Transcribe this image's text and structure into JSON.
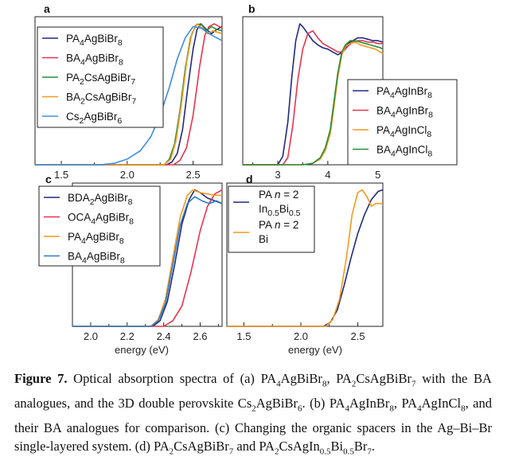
{
  "figure_label": "Figure 7.",
  "caption_parts": [
    " Optical absorption spectra of (a) PA",
    {
      "sub": "4"
    },
    "AgBiBr",
    {
      "sub": "8"
    },
    ", PA",
    {
      "sub": "2"
    },
    "CsAgBiBr",
    {
      "sub": "7"
    },
    " with the BA analogues, and the 3D double perovskite Cs",
    {
      "sub": "2"
    },
    "AgBiBr",
    {
      "sub": "6"
    },
    ". (b) PA",
    {
      "sub": "4"
    },
    "AgInBr",
    {
      "sub": "8"
    },
    ", PA",
    {
      "sub": "4"
    },
    "AgInCl",
    {
      "sub": "8"
    },
    ", and their BA analogues for comparison. (c) Changing the organic spacers in the Ag–Bi–Br single-layered system. (d) PA",
    {
      "sub": "2"
    },
    "CsAgBiBr",
    {
      "sub": "7"
    },
    " and PA",
    {
      "sub": "2"
    },
    "CsAgIn",
    {
      "sub": "0.5"
    },
    "Bi",
    {
      "sub": "0.5"
    },
    "Br",
    {
      "sub": "7"
    },
    "."
  ],
  "chart_data": [
    {
      "panel": "a",
      "type": "line",
      "xlabel": "",
      "ylabel": "",
      "xlim": [
        1.3,
        2.72
      ],
      "ylim": [
        0,
        1.05
      ],
      "xticks": [
        1.5,
        2.0,
        2.5
      ],
      "xtick_labels": [
        "1.5",
        "2.0",
        "2.5"
      ],
      "legend_position": "top-left",
      "series": [
        {
          "name": [
            [
              "PA",
              ""
            ],
            [
              "4",
              "sub"
            ],
            [
              "AgBiBr",
              ""
            ],
            [
              "8",
              "sub"
            ]
          ],
          "color": "#1f2a80",
          "x": [
            1.3,
            2.3,
            2.34,
            2.38,
            2.42,
            2.46,
            2.5,
            2.53,
            2.56,
            2.6,
            2.64,
            2.68,
            2.72
          ],
          "y": [
            0.0,
            0.0,
            0.02,
            0.08,
            0.25,
            0.55,
            0.82,
            0.96,
            1.0,
            0.96,
            0.93,
            0.96,
            0.98
          ]
        },
        {
          "name": [
            [
              "BA",
              ""
            ],
            [
              "4",
              "sub"
            ],
            [
              "AgBiBr",
              ""
            ],
            [
              "8",
              "sub"
            ]
          ],
          "color": "#e8334f",
          "x": [
            1.3,
            2.35,
            2.4,
            2.45,
            2.5,
            2.55,
            2.59,
            2.62,
            2.66,
            2.72
          ],
          "y": [
            0.0,
            0.0,
            0.03,
            0.12,
            0.35,
            0.7,
            0.92,
            0.98,
            1.0,
            0.97
          ]
        },
        {
          "name": [
            [
              "PA",
              ""
            ],
            [
              "2",
              "sub"
            ],
            [
              "CsAgBiBr",
              ""
            ],
            [
              "7",
              "sub"
            ]
          ],
          "color": "#2a8a3a",
          "x": [
            1.3,
            2.28,
            2.32,
            2.36,
            2.4,
            2.44,
            2.48,
            2.52,
            2.56,
            2.6,
            2.64,
            2.68,
            2.72
          ],
          "y": [
            0.0,
            0.0,
            0.04,
            0.15,
            0.38,
            0.68,
            0.9,
            0.99,
            1.0,
            0.95,
            0.98,
            0.96,
            0.95
          ]
        },
        {
          "name": [
            [
              "BA",
              ""
            ],
            [
              "2",
              "sub"
            ],
            [
              "CsAgBiBr",
              ""
            ],
            [
              "7",
              "sub"
            ]
          ],
          "color": "#f49a1c",
          "x": [
            1.3,
            2.28,
            2.33,
            2.37,
            2.41,
            2.45,
            2.49,
            2.53,
            2.57,
            2.61,
            2.65,
            2.72
          ],
          "y": [
            0.0,
            0.0,
            0.04,
            0.17,
            0.42,
            0.72,
            0.93,
            1.0,
            0.97,
            0.93,
            0.95,
            0.93
          ]
        },
        {
          "name": [
            [
              "Cs",
              ""
            ],
            [
              "2",
              "sub"
            ],
            [
              "AgBiBr",
              ""
            ],
            [
              "6",
              "sub"
            ]
          ],
          "color": "#3e8de0",
          "x": [
            1.3,
            1.8,
            1.9,
            2.0,
            2.1,
            2.18,
            2.25,
            2.32,
            2.38,
            2.44,
            2.5,
            2.56,
            2.62,
            2.68,
            2.72
          ],
          "y": [
            0.0,
            0.0,
            0.01,
            0.04,
            0.1,
            0.2,
            0.35,
            0.55,
            0.75,
            0.9,
            0.98,
            0.97,
            0.93,
            0.9,
            0.88
          ]
        }
      ]
    },
    {
      "panel": "b",
      "type": "line",
      "xlabel": "",
      "ylabel": "",
      "xlim": [
        2.3,
        5.1
      ],
      "ylim": [
        0,
        1.05
      ],
      "xticks": [
        3,
        4,
        5
      ],
      "xtick_labels": [
        "3",
        "4",
        "5"
      ],
      "legend_position": "bottom-right",
      "series": [
        {
          "name": [
            [
              "PA",
              ""
            ],
            [
              "4",
              "sub"
            ],
            [
              "AgInBr",
              ""
            ],
            [
              "8",
              "sub"
            ]
          ],
          "color": "#1f2a80",
          "x": [
            2.3,
            3.0,
            3.1,
            3.2,
            3.28,
            3.36,
            3.44,
            3.5,
            3.6,
            3.7,
            3.8,
            3.9,
            4.0,
            4.1,
            4.2,
            4.3,
            4.4,
            4.5,
            4.6,
            4.7,
            4.8,
            4.9,
            5.0,
            5.1
          ],
          "y": [
            0.0,
            0.0,
            0.06,
            0.3,
            0.62,
            0.88,
            1.0,
            0.98,
            0.93,
            0.88,
            0.85,
            0.83,
            0.82,
            0.8,
            0.78,
            0.8,
            0.86,
            0.88,
            0.9,
            0.9,
            0.89,
            0.88,
            0.88,
            0.87
          ]
        },
        {
          "name": [
            [
              "BA",
              ""
            ],
            [
              "4",
              "sub"
            ],
            [
              "AgInBr",
              ""
            ],
            [
              "8",
              "sub"
            ]
          ],
          "color": "#e8334f",
          "x": [
            2.3,
            3.1,
            3.2,
            3.3,
            3.4,
            3.5,
            3.6,
            3.7,
            3.8,
            3.9,
            4.0,
            4.1,
            4.2,
            4.3,
            4.4,
            4.5,
            4.6,
            4.7,
            4.8,
            4.9,
            5.0,
            5.1
          ],
          "y": [
            0.0,
            0.0,
            0.05,
            0.28,
            0.6,
            0.82,
            0.93,
            0.95,
            0.9,
            0.86,
            0.84,
            0.82,
            0.8,
            0.8,
            0.84,
            0.87,
            0.88,
            0.88,
            0.87,
            0.87,
            0.86,
            0.86
          ]
        },
        {
          "name": [
            [
              "PA",
              ""
            ],
            [
              "4",
              "sub"
            ],
            [
              "AgInCl",
              ""
            ],
            [
              "8",
              "sub"
            ]
          ],
          "color": "#f49a1c",
          "x": [
            2.3,
            3.5,
            3.7,
            3.85,
            3.95,
            4.05,
            4.12,
            4.2,
            4.28,
            4.35,
            4.45,
            4.55,
            4.65,
            4.75,
            4.85,
            4.95,
            5.05,
            5.1
          ],
          "y": [
            0.0,
            0.0,
            0.01,
            0.04,
            0.1,
            0.22,
            0.4,
            0.62,
            0.78,
            0.84,
            0.86,
            0.87,
            0.85,
            0.84,
            0.83,
            0.82,
            0.8,
            0.79
          ]
        },
        {
          "name": [
            [
              "BA",
              ""
            ],
            [
              "4",
              "sub"
            ],
            [
              "AgInCl",
              ""
            ],
            [
              "8",
              "sub"
            ]
          ],
          "color": "#2a8a3a",
          "x": [
            2.3,
            3.5,
            3.7,
            3.85,
            3.95,
            4.05,
            4.12,
            4.2,
            4.28,
            4.35,
            4.45,
            4.55,
            4.65,
            4.75,
            4.85,
            4.95,
            5.05,
            5.1
          ],
          "y": [
            0.0,
            0.0,
            0.01,
            0.05,
            0.12,
            0.25,
            0.44,
            0.65,
            0.8,
            0.85,
            0.88,
            0.88,
            0.87,
            0.86,
            0.85,
            0.84,
            0.83,
            0.82
          ]
        }
      ]
    },
    {
      "panel": "c",
      "type": "line",
      "xlabel": "energy (eV)",
      "ylabel": "",
      "xlim": [
        1.9,
        2.72
      ],
      "ylim": [
        0,
        1.05
      ],
      "xticks": [
        2.0,
        2.2,
        2.4,
        2.6
      ],
      "xtick_labels": [
        "2.0",
        "2.2",
        "2.4",
        "2.6"
      ],
      "legend_position": "top-left",
      "series": [
        {
          "name": [
            [
              "BDA",
              ""
            ],
            [
              "2",
              "sub"
            ],
            [
              "AgBiBr",
              ""
            ],
            [
              "8",
              "sub"
            ]
          ],
          "color": "#1f2a80",
          "x": [
            1.9,
            2.34,
            2.38,
            2.42,
            2.46,
            2.5,
            2.54,
            2.57,
            2.6,
            2.64,
            2.68,
            2.72
          ],
          "y": [
            0.0,
            0.0,
            0.04,
            0.18,
            0.45,
            0.75,
            0.93,
            1.0,
            0.98,
            0.94,
            0.92,
            0.9
          ]
        },
        {
          "name": [
            [
              "OCA",
              ""
            ],
            [
              "4",
              "sub"
            ],
            [
              "AgBiBr",
              ""
            ],
            [
              "8",
              "sub"
            ]
          ],
          "color": "#e8334f",
          "x": [
            1.9,
            2.4,
            2.45,
            2.5,
            2.55,
            2.6,
            2.64,
            2.68,
            2.72
          ],
          "y": [
            0.0,
            0.0,
            0.04,
            0.15,
            0.4,
            0.7,
            0.88,
            0.97,
            1.0
          ]
        },
        {
          "name": [
            [
              "PA",
              ""
            ],
            [
              "4",
              "sub"
            ],
            [
              "AgBiBr",
              ""
            ],
            [
              "8",
              "sub"
            ]
          ],
          "color": "#f49a1c",
          "x": [
            1.9,
            2.33,
            2.37,
            2.41,
            2.45,
            2.49,
            2.53,
            2.56,
            2.6,
            2.64,
            2.68,
            2.72
          ],
          "y": [
            0.0,
            0.0,
            0.05,
            0.2,
            0.5,
            0.8,
            0.96,
            1.0,
            0.98,
            0.97,
            0.96,
            0.96
          ]
        },
        {
          "name": [
            [
              "BA",
              ""
            ],
            [
              "4",
              "sub"
            ],
            [
              "AgBiBr",
              ""
            ],
            [
              "8",
              "sub"
            ]
          ],
          "color": "#2a7dc4",
          "x": [
            1.9,
            2.33,
            2.37,
            2.41,
            2.45,
            2.49,
            2.53,
            2.57,
            2.61,
            2.65,
            2.69,
            2.72
          ],
          "y": [
            0.0,
            0.0,
            0.04,
            0.17,
            0.45,
            0.74,
            0.9,
            0.95,
            0.92,
            0.9,
            0.92,
            0.9
          ]
        }
      ]
    },
    {
      "panel": "d",
      "type": "line",
      "xlabel": "energy (eV)",
      "ylabel": "",
      "xlim": [
        1.35,
        2.72
      ],
      "ylim": [
        0,
        1.05
      ],
      "xticks": [
        1.5,
        2.0,
        2.5
      ],
      "xtick_labels": [
        "1.5",
        "2.0",
        "2.5"
      ],
      "legend_position": "top-left",
      "series": [
        {
          "name": [
            [
              "PA ",
              ""
            ],
            [
              "n",
              "italic"
            ],
            [
              " = 2",
              ""
            ],
            [
              "\n",
              "br"
            ],
            [
              "In",
              ""
            ],
            [
              "0.5",
              "sub"
            ],
            [
              "Bi",
              ""
            ],
            [
              "0.5",
              "sub"
            ]
          ],
          "color": "#1f2a80",
          "x": [
            1.35,
            2.2,
            2.26,
            2.32,
            2.38,
            2.44,
            2.5,
            2.56,
            2.62,
            2.68,
            2.72
          ],
          "y": [
            0.0,
            0.0,
            0.03,
            0.12,
            0.3,
            0.5,
            0.68,
            0.82,
            0.93,
            0.99,
            1.0
          ]
        },
        {
          "name": [
            [
              "PA ",
              ""
            ],
            [
              "n",
              "italic"
            ],
            [
              " = 2",
              ""
            ],
            [
              "\n",
              "br"
            ],
            [
              "Bi",
              ""
            ]
          ],
          "color": "#f49a1c",
          "x": [
            1.35,
            2.22,
            2.28,
            2.34,
            2.4,
            2.45,
            2.5,
            2.54,
            2.58,
            2.62,
            2.66,
            2.72
          ],
          "y": [
            0.0,
            0.0,
            0.05,
            0.2,
            0.5,
            0.82,
            0.98,
            1.0,
            0.95,
            0.88,
            0.9,
            0.9
          ]
        }
      ]
    }
  ]
}
